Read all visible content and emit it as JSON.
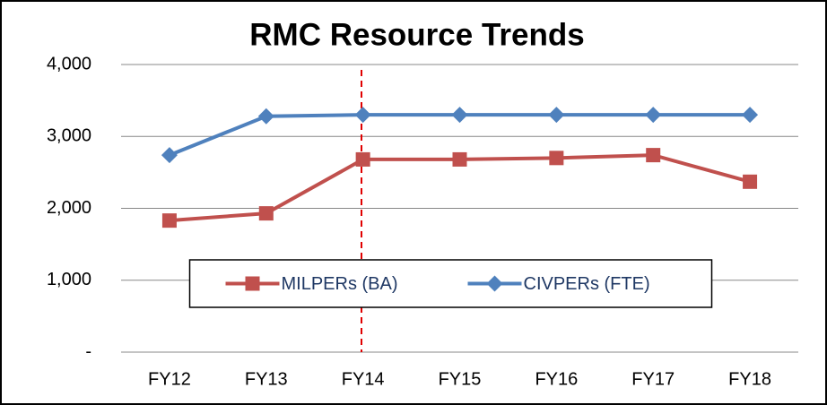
{
  "chart_data": {
    "type": "line",
    "title": "RMC Resource Trends",
    "categories": [
      "FY12",
      "FY13",
      "FY14",
      "FY15",
      "FY16",
      "FY17",
      "FY18"
    ],
    "series": [
      {
        "name": "MILPERs (BA)",
        "color": "#c0504d",
        "marker": "square",
        "values": [
          1830,
          1930,
          2680,
          2680,
          2700,
          2740,
          2370
        ]
      },
      {
        "name": "CIVPERs (FTE)",
        "color": "#4f81bd",
        "marker": "diamond",
        "values": [
          2740,
          3280,
          3300,
          3300,
          3300,
          3300,
          3300
        ]
      }
    ],
    "ylim": [
      0,
      4000
    ],
    "yticks": [
      {
        "value": 0,
        "label": "-"
      },
      {
        "value": 1000,
        "label": "1,000"
      },
      {
        "value": 2000,
        "label": "2,000"
      },
      {
        "value": 3000,
        "label": "3,000"
      },
      {
        "value": 4000,
        "label": "4,000"
      }
    ],
    "grid": true,
    "legend": "center"
  }
}
